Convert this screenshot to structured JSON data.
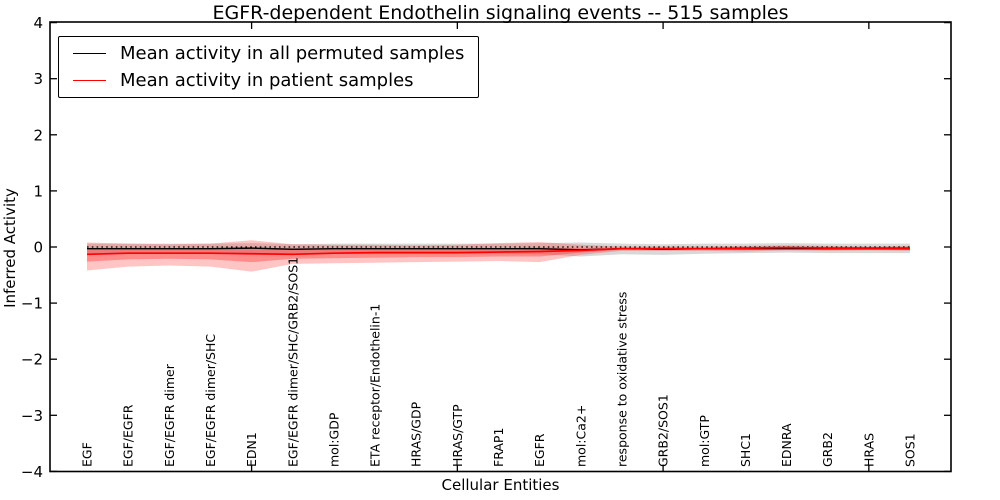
{
  "title": "EGFR-dependent Endothelin signaling events -- 515 samples",
  "axes": {
    "xlabel": "Cellular Entities",
    "ylabel": "Inferred Activity",
    "ytick_labels": [
      "4",
      "3",
      "2",
      "1",
      "0",
      "−1",
      "−2",
      "−3",
      "−4"
    ]
  },
  "legend": {
    "items": [
      {
        "label": "Mean activity in all permuted samples",
        "color": "#000000"
      },
      {
        "label": "Mean activity in patient samples",
        "color": "#ff0000"
      }
    ]
  },
  "chart_data": {
    "type": "line",
    "title": "EGFR-dependent Endothelin signaling events -- 515 samples",
    "xlabel": "Cellular Entities",
    "ylabel": "Inferred Activity",
    "ylim": [
      -4,
      4
    ],
    "yticks": [
      4,
      3,
      2,
      1,
      0,
      -1,
      -2,
      -3,
      -4
    ],
    "xtick_category_indices": [
      4,
      9,
      14,
      19
    ],
    "grid": false,
    "legend_position": "upper left",
    "zero_line": {
      "y": 0,
      "style": "dotted",
      "color": "#000000"
    },
    "categories": [
      "EGF",
      "EGF/EGFR",
      "EGF/EGFR dimer",
      "EGF/EGFR dimer/SHC",
      "EDN1",
      "EGF/EGFR dimer/SHC/GRB2/SOS1",
      "mol:GDP",
      "ETA receptor/Endothelin-1",
      "HRAS/GDP",
      "HRAS/GTP",
      "FRAP1",
      "EGFR",
      "mol:Ca2+",
      "response to oxidative stress",
      "GRB2/SOS1",
      "mol:GTP",
      "SHC1",
      "EDNRA",
      "GRB2",
      "HRAS",
      "SOS1"
    ],
    "series": [
      {
        "name": "Mean activity in all permuted samples",
        "color": "#000000",
        "band_color": "rgba(125,125,125,0.30)",
        "values": [
          -0.03,
          -0.03,
          -0.03,
          -0.03,
          -0.02,
          -0.04,
          -0.03,
          -0.03,
          -0.03,
          -0.03,
          -0.03,
          -0.03,
          -0.05,
          -0.03,
          -0.04,
          -0.03,
          -0.03,
          -0.03,
          -0.03,
          -0.03,
          -0.03
        ],
        "band_upper": [
          0.06,
          0.06,
          0.06,
          0.06,
          0.07,
          0.05,
          0.06,
          0.06,
          0.06,
          0.06,
          0.06,
          0.07,
          0.08,
          0.06,
          0.05,
          0.06,
          0.06,
          0.07,
          0.06,
          0.06,
          0.06
        ],
        "band_lower": [
          -0.12,
          -0.12,
          -0.12,
          -0.12,
          -0.12,
          -0.13,
          -0.12,
          -0.12,
          -0.12,
          -0.12,
          -0.12,
          -0.13,
          -0.17,
          -0.13,
          -0.14,
          -0.12,
          -0.11,
          -0.1,
          -0.11,
          -0.11,
          -0.11
        ]
      },
      {
        "name": "Mean activity in patient samples",
        "color": "#ff0000",
        "band_color": "rgba(255,45,45,0.28)",
        "inner_band_color": "rgba(255,45,45,0.38)",
        "values": [
          -0.13,
          -0.11,
          -0.11,
          -0.11,
          -0.12,
          -0.13,
          -0.11,
          -0.1,
          -0.1,
          -0.1,
          -0.09,
          -0.08,
          -0.06,
          -0.03,
          -0.03,
          -0.03,
          -0.02,
          -0.01,
          -0.02,
          -0.02,
          -0.02
        ],
        "band_upper": [
          0.08,
          0.06,
          0.05,
          0.06,
          0.12,
          0.05,
          0.04,
          0.04,
          0.03,
          0.04,
          0.07,
          0.09,
          0.04,
          0.01,
          0.01,
          0.01,
          0.02,
          0.03,
          0.02,
          0.01,
          0.02
        ],
        "band_lower": [
          -0.42,
          -0.35,
          -0.33,
          -0.35,
          -0.44,
          -0.3,
          -0.29,
          -0.28,
          -0.27,
          -0.26,
          -0.25,
          -0.27,
          -0.14,
          -0.07,
          -0.07,
          -0.07,
          -0.08,
          -0.06,
          -0.07,
          -0.06,
          -0.07
        ],
        "inner_band_upper": [
          -0.02,
          -0.02,
          -0.03,
          -0.02,
          -0.01,
          -0.03,
          -0.03,
          -0.03,
          -0.03,
          -0.03,
          -0.02,
          -0.01,
          -0.02,
          -0.01,
          -0.01,
          -0.01,
          0.0,
          0.01,
          0.0,
          0.0,
          0.0
        ],
        "inner_band_lower": [
          -0.26,
          -0.22,
          -0.21,
          -0.22,
          -0.27,
          -0.21,
          -0.2,
          -0.19,
          -0.18,
          -0.18,
          -0.17,
          -0.17,
          -0.1,
          -0.05,
          -0.05,
          -0.05,
          -0.05,
          -0.04,
          -0.05,
          -0.04,
          -0.05
        ]
      }
    ]
  }
}
